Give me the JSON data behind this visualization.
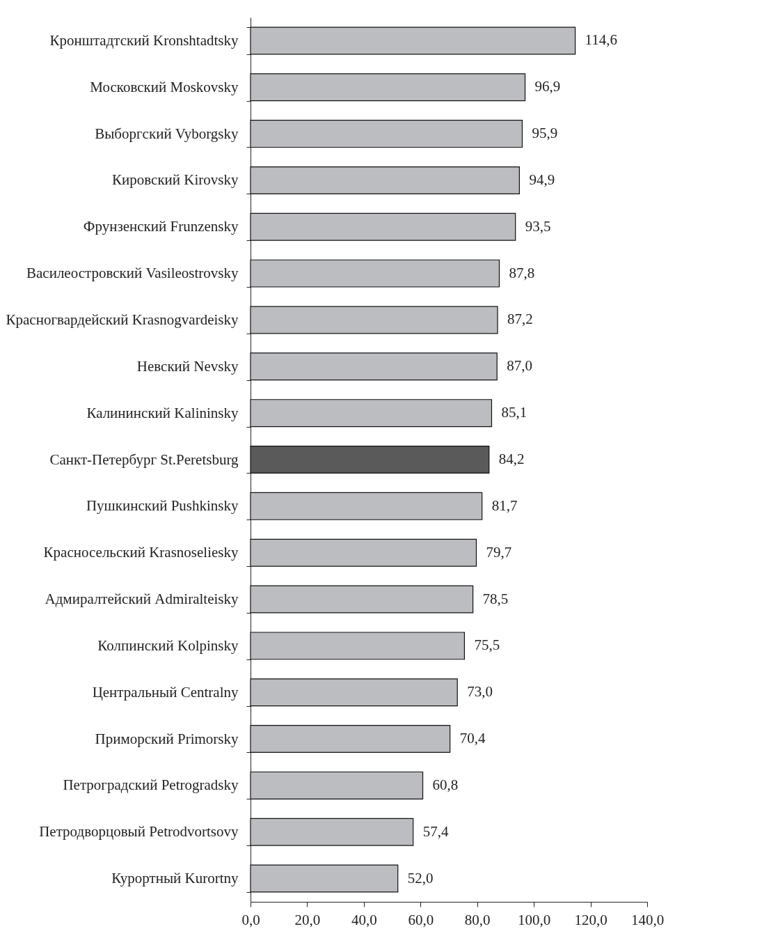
{
  "chart_data": {
    "type": "bar",
    "orientation": "horizontal",
    "categories": [
      "Кронштадтский Kronshtadtsky",
      "Московский Moskovsky",
      "Выборгский Vyborgsky",
      "Кировский Kirovsky",
      "Фрунзенский Frunzensky",
      "Василеостровский Vasileostrovsky",
      "Красногвардейский Krasnogvardeisky",
      "Невский Nevsky",
      "Калининский Kalininsky",
      "Санкт-Петербург St.Peretsburg",
      "Пушкинский Pushkinsky",
      "Красносельский Krasnoseliesky",
      "Адмиралтейский Admiralteisky",
      "Колпинский Kolpinsky",
      "Центральный Centralny",
      "Приморский Primorsky",
      "Петроградский Petrogradsky",
      "Петродворцовый Petrodvortsovy",
      "Курортный Kurortny"
    ],
    "values": [
      114.6,
      96.9,
      95.9,
      94.9,
      93.5,
      87.8,
      87.2,
      87.0,
      85.1,
      84.2,
      81.7,
      79.7,
      78.5,
      75.5,
      73.0,
      70.4,
      60.8,
      57.4,
      52.0
    ],
    "value_labels": [
      "114,6",
      "96,9",
      "95,9",
      "94,9",
      "93,5",
      "87,8",
      "87,2",
      "87,0",
      "85,1",
      "84,2",
      "81,7",
      "79,7",
      "78,5",
      "75,5",
      "73,0",
      "70,4",
      "60,8",
      "57,4",
      "52,0"
    ],
    "colors": [
      "#bcbdc0",
      "#bcbdc0",
      "#bcbdc0",
      "#bcbdc0",
      "#bcbdc0",
      "#bcbdc0",
      "#bcbdc0",
      "#bcbdc0",
      "#bcbdc0",
      "#5a5a5a",
      "#bcbdc0",
      "#bcbdc0",
      "#bcbdc0",
      "#bcbdc0",
      "#bcbdc0",
      "#bcbdc0",
      "#bcbdc0",
      "#bcbdc0",
      "#bcbdc0"
    ],
    "xlim": [
      0,
      140
    ],
    "xticks": [
      {
        "value": 0,
        "label": "0,0"
      },
      {
        "value": 20,
        "label": "20,0"
      },
      {
        "value": 40,
        "label": "40,0"
      },
      {
        "value": 60,
        "label": "60,0"
      },
      {
        "value": 80,
        "label": "80,0"
      },
      {
        "value": 100,
        "label": "100,0"
      },
      {
        "value": 120,
        "label": "120,0"
      },
      {
        "value": 140,
        "label": "140,0"
      }
    ],
    "grid": false
  }
}
